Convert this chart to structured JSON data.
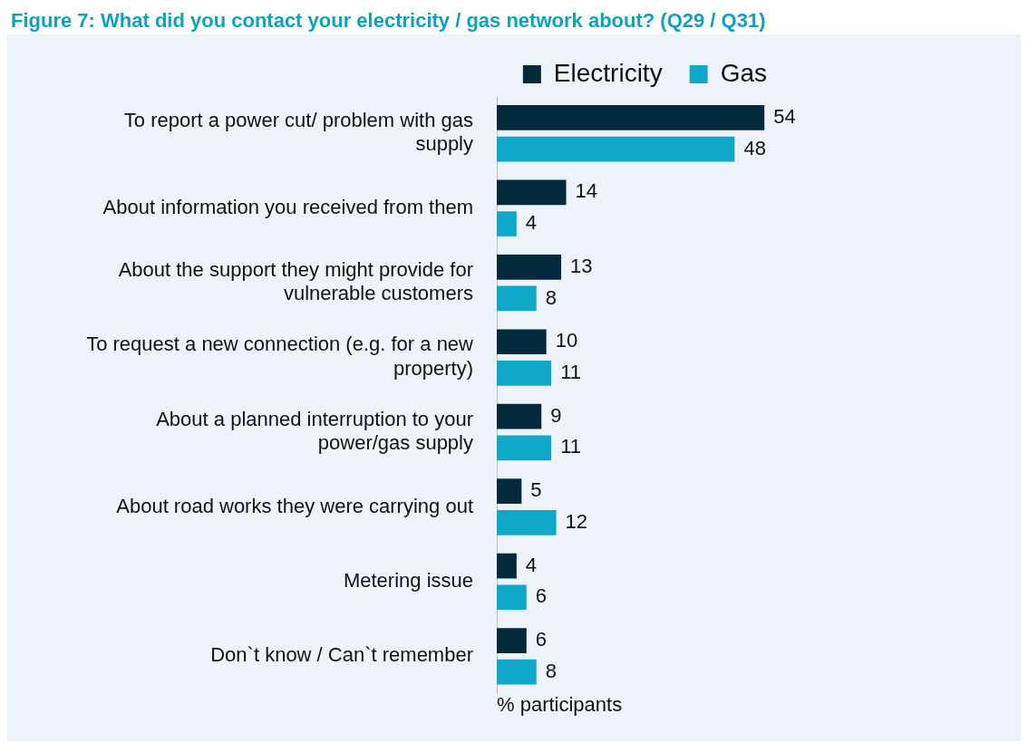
{
  "chart_data": {
    "type": "bar",
    "orientation": "horizontal",
    "title": "Figure 7: What did you contact your electricity / gas network about? (Q29 / Q31)",
    "categories": [
      "To report a power cut/ problem with gas supply",
      "About information you received from them",
      "About the support they might provide for vulnerable customers",
      "To request a new connection (e.g. for a new property)",
      "About a planned interruption to your power/gas supply",
      "About road works they were carrying out",
      "Metering issue",
      "Don`t know / Can`t remember"
    ],
    "series": [
      {
        "name": "Electricity",
        "color": "#022a3a",
        "values": [
          54,
          14,
          13,
          10,
          9,
          5,
          4,
          6
        ]
      },
      {
        "name": "Gas",
        "color": "#0fa8c9",
        "values": [
          48,
          4,
          8,
          11,
          11,
          12,
          6,
          8
        ]
      }
    ],
    "xlabel": "% participants",
    "data_labels": true,
    "legend": "top right",
    "grid": false,
    "tick_labels": "y"
  }
}
